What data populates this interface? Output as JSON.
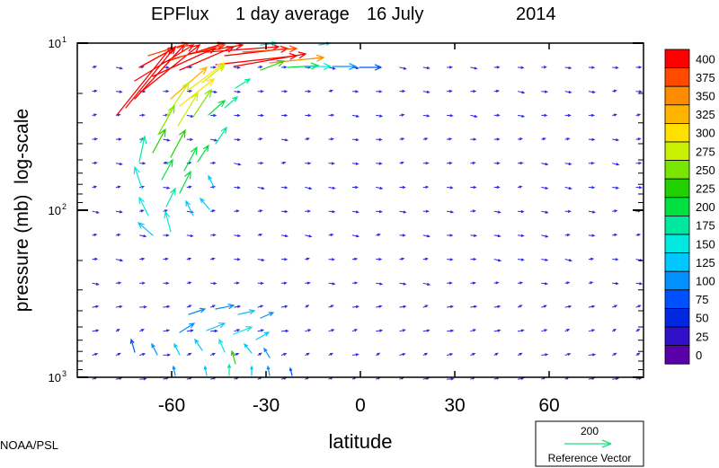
{
  "chart_data": {
    "type": "vector-field",
    "title": {
      "name": "EPFlux",
      "period": "1 day average",
      "date": "16 July",
      "year": "2014"
    },
    "xlabel": "latitude",
    "ylabel": "pressure (mb)  log-scale",
    "xlim": [
      -90,
      90
    ],
    "ylim": [
      1000,
      10
    ],
    "y_scale": "log",
    "x_ticks": [
      -60,
      -30,
      0,
      30,
      60
    ],
    "x_tick_labels": [
      "-60",
      "-30",
      "0",
      "30",
      "60"
    ],
    "y_ticks": [
      {
        "value": 10,
        "base": "10",
        "exp": "1"
      },
      {
        "value": 100,
        "base": "10",
        "exp": "2"
      },
      {
        "value": 1000,
        "base": "10",
        "exp": "3"
      }
    ],
    "grid": false,
    "colorbar": {
      "placement": "right",
      "levels": [
        "400",
        "375",
        "350",
        "325",
        "300",
        "275",
        "250",
        "225",
        "200",
        "175",
        "150",
        "125",
        "100",
        "75",
        "50",
        "25",
        "0"
      ],
      "colors": [
        "#ff0000",
        "#ff4a00",
        "#ff8c00",
        "#ffb400",
        "#ffe000",
        "#c8f000",
        "#78e600",
        "#20d000",
        "#00e040",
        "#00e8a0",
        "#00e8e0",
        "#00c8ff",
        "#0090ff",
        "#0050ff",
        "#0028e0",
        "#3010c8",
        "#5a00a8"
      ]
    },
    "reference_vector": {
      "value": "200",
      "label": "Reference Vector",
      "color": "#22dd88"
    },
    "credit": "NOAA/PSL"
  }
}
